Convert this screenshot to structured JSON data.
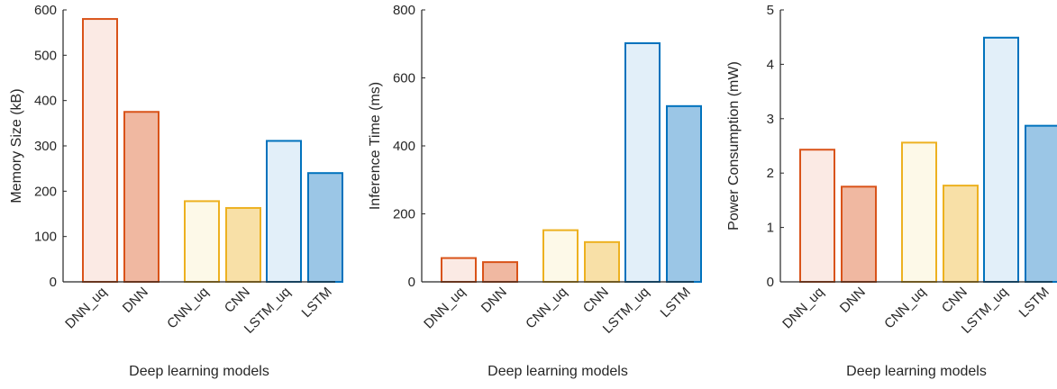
{
  "figure": {
    "colors": {
      "DNN_uq": {
        "edge": "#D95319",
        "fill": "#FBEAE4"
      },
      "DNN": {
        "edge": "#D95319",
        "fill": "#F0B8A1"
      },
      "CNN_uq": {
        "edge": "#EDB120",
        "fill": "#FDF9E8"
      },
      "CNN": {
        "edge": "#EDB120",
        "fill": "#F8E0A7"
      },
      "LSTM_uq": {
        "edge": "#0072BD",
        "fill": "#E2EFF9"
      },
      "LSTM": {
        "edge": "#0072BD",
        "fill": "#9BC6E6"
      }
    }
  },
  "chart_data": [
    {
      "type": "bar",
      "xlabel": "Deep learning models",
      "ylabel": "Memory Size (kB)",
      "categories": [
        "DNN_uq",
        "DNN",
        "CNN_uq",
        "CNN",
        "LSTM_uq",
        "LSTM"
      ],
      "values": [
        580,
        375,
        178,
        163,
        311,
        240
      ],
      "ylim": [
        0,
        600
      ],
      "yticks": [
        "0",
        "100",
        "200",
        "300",
        "400",
        "500",
        "600"
      ],
      "ytick_values": [
        0,
        100,
        200,
        300,
        400,
        500,
        600
      ],
      "grid": false
    },
    {
      "type": "bar",
      "xlabel": "Deep learning models",
      "ylabel": "Inference Time (ms)",
      "categories": [
        "DNN_uq",
        "DNN",
        "CNN_uq",
        "CNN",
        "LSTM_uq",
        "LSTM"
      ],
      "values": [
        70,
        58,
        152,
        117,
        702,
        517
      ],
      "ylim": [
        0,
        800
      ],
      "yticks": [
        "0",
        "200",
        "400",
        "600",
        "800"
      ],
      "ytick_values": [
        0,
        200,
        400,
        600,
        800
      ],
      "grid": false
    },
    {
      "type": "bar",
      "xlabel": "Deep learning models",
      "ylabel": "Power Consumption (mW)",
      "categories": [
        "DNN_uq",
        "DNN",
        "CNN_uq",
        "CNN",
        "LSTM_uq",
        "LSTM"
      ],
      "values": [
        2.43,
        1.75,
        2.56,
        1.77,
        4.49,
        2.87
      ],
      "ylim": [
        0,
        5
      ],
      "yticks": [
        "0",
        "1",
        "2",
        "3",
        "4",
        "5"
      ],
      "ytick_values": [
        0,
        1,
        2,
        3,
        4,
        5
      ],
      "grid": false
    }
  ]
}
